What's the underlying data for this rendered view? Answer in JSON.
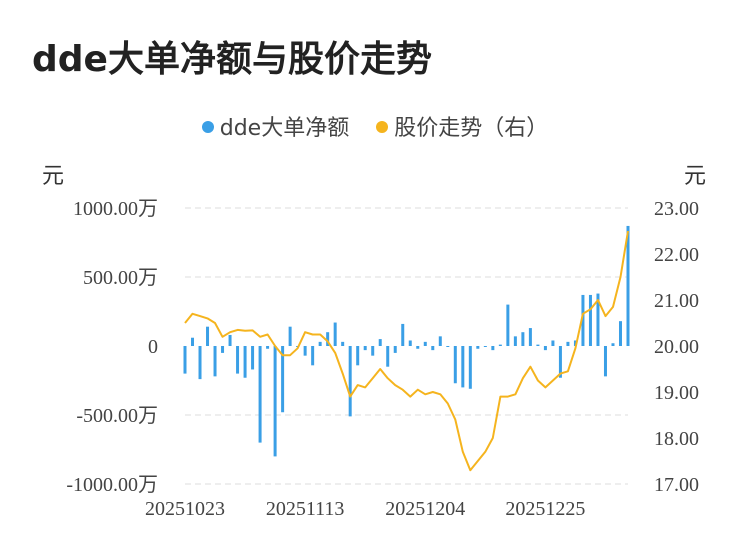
{
  "title": "dde大单净额与股价走势",
  "colors": {
    "bar": "#3a9fe6",
    "line": "#f5b41e",
    "grid": "#dcdcdc"
  },
  "chart_data": {
    "type": "bar+line",
    "title": "dde大单净额与股价走势",
    "left_axis_unit": "元",
    "right_axis_unit": "元",
    "left_ticks": [
      {
        "value": 1000,
        "label": "1000.00万"
      },
      {
        "value": 500,
        "label": "500.00万"
      },
      {
        "value": 0,
        "label": "0"
      },
      {
        "value": -500,
        "label": "-500.00万"
      },
      {
        "value": -1000,
        "label": "-1000.00万"
      }
    ],
    "right_ticks": [
      {
        "value": 23,
        "label": "23.00"
      },
      {
        "value": 22,
        "label": "22.00"
      },
      {
        "value": 21,
        "label": "21.00"
      },
      {
        "value": 20,
        "label": "20.00"
      },
      {
        "value": 19,
        "label": "19.00"
      },
      {
        "value": 18,
        "label": "18.00"
      },
      {
        "value": 17,
        "label": "17.00"
      }
    ],
    "left_ylim": [
      -1000,
      1000
    ],
    "right_ylim": [
      17,
      23
    ],
    "x_tick_labels": [
      {
        "index": 0,
        "label": "20251023"
      },
      {
        "index": 16,
        "label": "20251113"
      },
      {
        "index": 32,
        "label": "20251204"
      },
      {
        "index": 48,
        "label": "20251225"
      }
    ],
    "grid": true,
    "legend_position": "top-center",
    "series": [
      {
        "name": "dde大单净额",
        "type": "bar",
        "axis": "left",
        "values": [
          -200,
          60,
          -240,
          140,
          -220,
          -50,
          80,
          -200,
          -230,
          -170,
          -700,
          -20,
          -800,
          -480,
          140,
          0,
          -70,
          -140,
          30,
          100,
          170,
          30,
          -510,
          -140,
          -30,
          -70,
          50,
          -150,
          -50,
          160,
          40,
          -20,
          30,
          -30,
          70,
          0,
          -270,
          -300,
          -310,
          -20,
          0,
          -30,
          10,
          300,
          70,
          100,
          130,
          10,
          -30,
          40,
          -230,
          30,
          40,
          370,
          370,
          380,
          -220,
          20,
          180,
          870
        ]
      },
      {
        "name": "股价走势（右）",
        "type": "line",
        "axis": "right",
        "values": [
          20.5,
          20.7,
          20.65,
          20.6,
          20.5,
          20.2,
          20.3,
          20.35,
          20.33,
          20.34,
          20.2,
          20.25,
          20.0,
          19.8,
          19.8,
          19.95,
          20.3,
          20.25,
          20.25,
          20.1,
          19.85,
          19.4,
          18.9,
          19.15,
          19.1,
          19.3,
          19.5,
          19.3,
          19.15,
          19.05,
          18.9,
          19.05,
          18.95,
          19.0,
          18.95,
          18.75,
          18.4,
          17.7,
          17.3,
          17.5,
          17.7,
          18.0,
          18.9,
          18.9,
          18.95,
          19.3,
          19.55,
          19.25,
          19.1,
          19.25,
          19.4,
          19.45,
          19.95,
          20.7,
          20.8,
          21.0,
          20.65,
          20.85,
          21.5,
          22.5
        ]
      }
    ]
  }
}
